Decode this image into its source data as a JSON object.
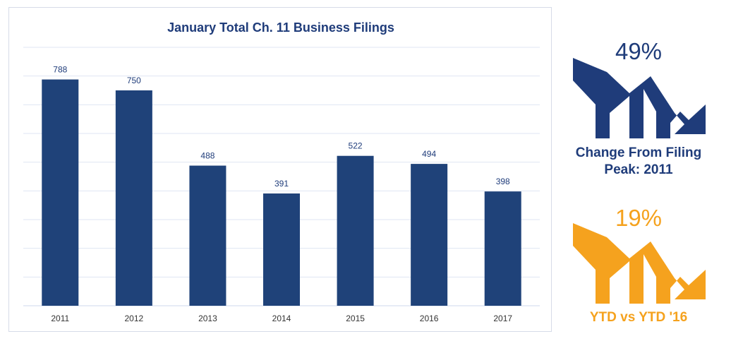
{
  "chart_data": {
    "type": "bar",
    "title": "January Total Ch. 11 Business Filings",
    "categories": [
      "2011",
      "2012",
      "2013",
      "2014",
      "2015",
      "2016",
      "2017"
    ],
    "values": [
      788,
      750,
      488,
      391,
      522,
      494,
      398
    ],
    "ylim": [
      0,
      900
    ],
    "grid": true,
    "bar_color": "#1f4279",
    "grid_color": "#dfe6f3"
  },
  "stats": [
    {
      "value": "49%",
      "label": "Change From Filing Peak: 2011",
      "color": "#1f3c7a"
    },
    {
      "value": "19%",
      "label": "YTD vs YTD '16",
      "color": "#f5a21e"
    }
  ]
}
